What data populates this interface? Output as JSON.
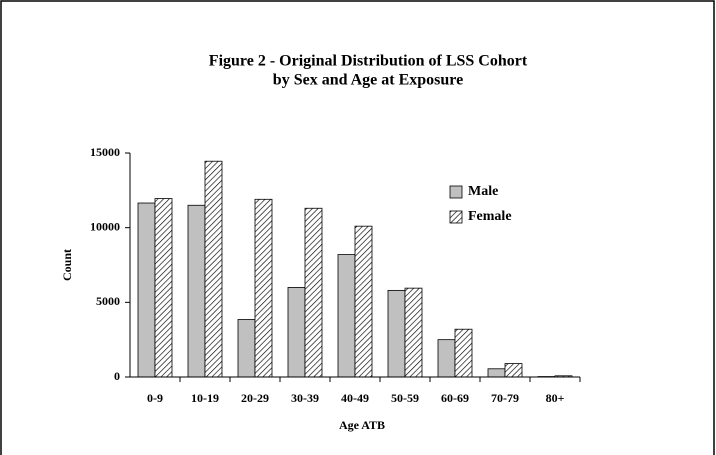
{
  "chart_data": {
    "type": "bar",
    "title": "Figure 2 - Original Distribution of LSS Cohort",
    "subtitle": "by Sex and Age at Exposure",
    "x_label": "Age ATB",
    "y_label": "Count",
    "categories": [
      "0-9",
      "10-19",
      "20-29",
      "30-39",
      "40-49",
      "50-59",
      "60-69",
      "70-79",
      "80+"
    ],
    "series": [
      {
        "name": "Male",
        "color": "#c0c0c0",
        "values": [
          11650,
          11500,
          3850,
          6000,
          8200,
          5800,
          2500,
          550,
          30
        ]
      },
      {
        "name": "Female",
        "color": "#ffffff",
        "pattern": "hatch",
        "values": [
          11950,
          14450,
          11900,
          11300,
          10100,
          5950,
          3200,
          900,
          80
        ]
      }
    ],
    "ylim": [
      0,
      15000
    ],
    "yticks": [
      0,
      5000,
      10000,
      15000
    ],
    "grid": false,
    "legend": "upper right"
  }
}
